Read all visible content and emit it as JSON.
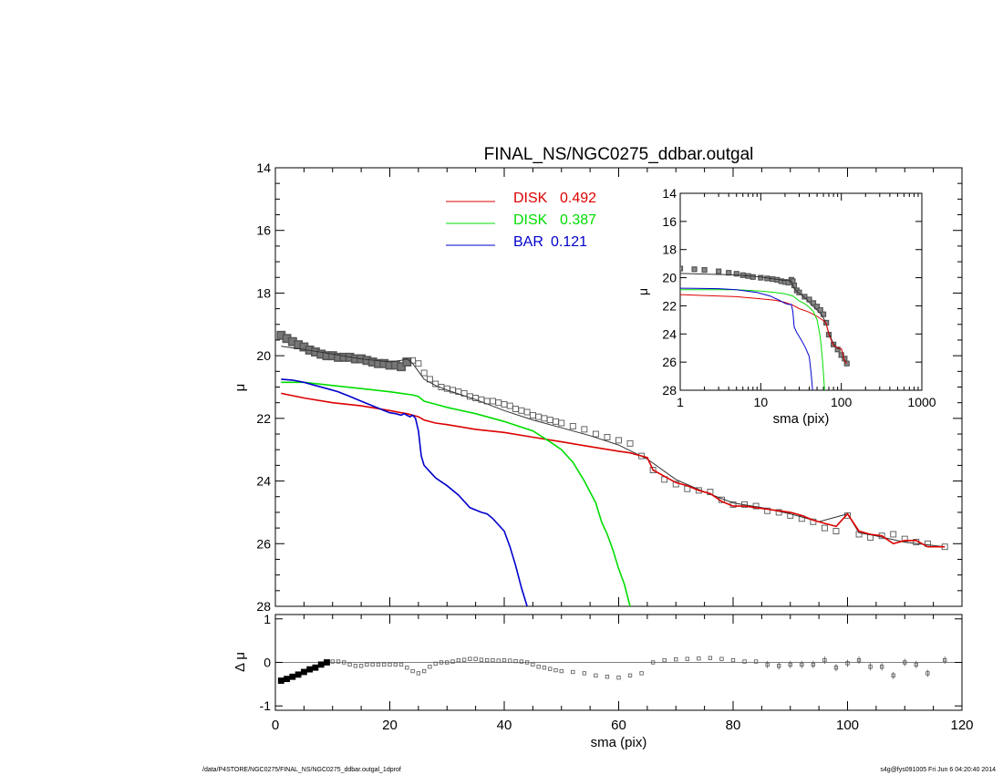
{
  "chart_data": [
    {
      "id": "main",
      "type": "line",
      "title": "FINAL_NS/NGC0275_ddbar.outgal",
      "xlabel": "",
      "ylabel": "μ",
      "xlim": [
        0,
        120
      ],
      "ylim": [
        28,
        14
      ],
      "y_inverted": true,
      "yticks": [
        14,
        16,
        18,
        20,
        22,
        24,
        26,
        28
      ],
      "legend": {
        "position": "top-center",
        "entries": [
          {
            "label": "DISK",
            "value": "0.492",
            "color": "#dd0000"
          },
          {
            "label": "DISK",
            "value": "0.387",
            "color": "#00dd00"
          },
          {
            "label": "BAR",
            "value": "0.121",
            "color": "#0000cc"
          }
        ]
      },
      "series": [
        {
          "kind": "observed",
          "color": "#555555",
          "x": [
            1,
            2,
            3,
            4,
            5,
            6,
            7,
            8,
            9,
            10,
            11,
            12,
            13,
            14,
            15,
            16,
            17,
            18,
            19,
            20,
            21,
            22,
            23,
            24,
            25,
            26,
            27,
            28,
            29,
            30,
            31,
            32,
            33,
            34,
            35,
            36,
            37,
            38,
            39,
            40,
            41,
            42,
            43,
            44,
            45,
            46,
            47,
            48,
            49,
            50,
            52,
            54,
            56,
            58,
            60,
            62,
            64,
            66,
            68,
            70,
            72,
            74,
            76,
            78,
            80,
            82,
            84,
            86,
            88,
            90,
            92,
            94,
            96,
            98,
            100,
            102,
            104,
            106,
            108,
            110,
            112,
            114,
            117
          ],
          "y": [
            19.35,
            19.45,
            19.55,
            19.65,
            19.72,
            19.82,
            19.88,
            19.95,
            20.0,
            20.0,
            20.05,
            20.05,
            20.05,
            20.1,
            20.1,
            20.15,
            20.2,
            20.25,
            20.25,
            20.3,
            20.3,
            20.35,
            20.2,
            20.15,
            20.25,
            20.55,
            20.75,
            20.9,
            21.0,
            21.05,
            21.1,
            21.15,
            21.2,
            21.3,
            21.35,
            21.4,
            21.45,
            21.45,
            21.5,
            21.55,
            21.6,
            21.7,
            21.75,
            21.8,
            21.9,
            21.95,
            22.0,
            22.05,
            22.1,
            22.15,
            22.25,
            22.35,
            22.5,
            22.6,
            22.7,
            22.8,
            23.2,
            23.65,
            23.95,
            24.1,
            24.25,
            24.3,
            24.35,
            24.6,
            24.75,
            24.75,
            24.8,
            24.95,
            25.0,
            25.1,
            25.2,
            25.3,
            25.5,
            25.6,
            25.1,
            25.7,
            25.8,
            25.75,
            25.7,
            25.85,
            25.95,
            26.0,
            26.1
          ]
        },
        {
          "kind": "model-total",
          "color": "#333333",
          "x": [
            1,
            5,
            10,
            15,
            20,
            22,
            23,
            24,
            25,
            26,
            28,
            30,
            35,
            40,
            45,
            50,
            55,
            60,
            65,
            70,
            75,
            80,
            85,
            90,
            95,
            100,
            102,
            105,
            110,
            117
          ],
          "y": [
            19.7,
            19.8,
            19.95,
            20.1,
            20.2,
            20.15,
            20.1,
            20.25,
            20.5,
            20.75,
            20.95,
            21.1,
            21.4,
            21.75,
            22.05,
            22.3,
            22.55,
            22.85,
            23.3,
            23.95,
            24.35,
            24.7,
            24.85,
            25.05,
            25.3,
            25.05,
            25.65,
            25.75,
            25.95,
            26.1
          ]
        },
        {
          "name": "DISK 0.492",
          "color": "#dd0000",
          "x": [
            1,
            5,
            10,
            15,
            20,
            22,
            23,
            24,
            25,
            26,
            28,
            30,
            35,
            40,
            45,
            50,
            55,
            60,
            62,
            64,
            65,
            66,
            68,
            70,
            72,
            74,
            76,
            78,
            80,
            82,
            84,
            86,
            88,
            90,
            92,
            94,
            96,
            98,
            100,
            102,
            104,
            106,
            108,
            110,
            112,
            114,
            117
          ],
          "y": [
            21.2,
            21.35,
            21.5,
            21.6,
            21.75,
            21.82,
            21.85,
            21.9,
            21.95,
            22.05,
            22.15,
            22.2,
            22.35,
            22.45,
            22.6,
            22.75,
            22.9,
            23.05,
            23.1,
            23.2,
            23.25,
            23.65,
            23.85,
            24.05,
            24.15,
            24.3,
            24.4,
            24.65,
            24.8,
            24.8,
            24.85,
            24.9,
            24.95,
            25.0,
            25.1,
            25.25,
            25.35,
            25.45,
            25.05,
            25.6,
            25.7,
            25.75,
            26.0,
            25.9,
            25.9,
            26.1,
            26.1
          ]
        },
        {
          "name": "DISK 0.387",
          "color": "#00dd00",
          "x": [
            1,
            5,
            10,
            15,
            20,
            22,
            24,
            25,
            26,
            28,
            30,
            35,
            40,
            45,
            48,
            50,
            52,
            54,
            56,
            57,
            58,
            59,
            60,
            61,
            62
          ],
          "y": [
            20.85,
            20.85,
            20.95,
            21.05,
            21.15,
            21.2,
            21.25,
            21.3,
            21.45,
            21.55,
            21.65,
            21.85,
            22.1,
            22.4,
            22.75,
            23.0,
            23.4,
            24.0,
            24.7,
            25.3,
            25.7,
            26.2,
            26.8,
            27.3,
            28.0
          ]
        },
        {
          "name": "BAR 0.121",
          "color": "#0000cc",
          "x": [
            1,
            3,
            5,
            7,
            9,
            11,
            13,
            15,
            17,
            19,
            20,
            21,
            22,
            22.5,
            23,
            23.5,
            24,
            24.5,
            25,
            25.5,
            26,
            27,
            28,
            30,
            32,
            34,
            36,
            37,
            38,
            40,
            41,
            42,
            43,
            44
          ],
          "y": [
            20.75,
            20.78,
            20.85,
            20.95,
            21.05,
            21.15,
            21.3,
            21.45,
            21.6,
            21.75,
            21.82,
            21.85,
            21.9,
            21.85,
            21.9,
            21.95,
            21.9,
            22.0,
            22.4,
            23.2,
            23.5,
            23.7,
            23.9,
            24.15,
            24.45,
            24.85,
            25.0,
            25.05,
            25.2,
            25.6,
            26.1,
            26.7,
            27.4,
            28.0
          ]
        }
      ]
    },
    {
      "id": "residual",
      "type": "scatter",
      "xlabel": "sma (pix)",
      "ylabel": "Δ μ",
      "xlim": [
        0,
        120
      ],
      "ylim": [
        -1.1,
        1.1
      ],
      "xticks": [
        0,
        20,
        40,
        60,
        80,
        100,
        120
      ],
      "yticks": [
        1,
        0,
        -1
      ],
      "series": [
        {
          "kind": "residual",
          "color": "#555555",
          "x": [
            1,
            2,
            3,
            4,
            5,
            6,
            7,
            8,
            9,
            10,
            11,
            12,
            13,
            14,
            15,
            16,
            17,
            18,
            19,
            20,
            21,
            22,
            23,
            24,
            25,
            26,
            27,
            28,
            29,
            30,
            31,
            32,
            33,
            34,
            35,
            36,
            37,
            38,
            39,
            40,
            41,
            42,
            43,
            44,
            45,
            46,
            47,
            48,
            49,
            50,
            52,
            54,
            56,
            58,
            60,
            62,
            64,
            66,
            68,
            70,
            72,
            74,
            76,
            78,
            80,
            82,
            84,
            86,
            88,
            90,
            92,
            94,
            96,
            98,
            100,
            102,
            104,
            106,
            108,
            110,
            112,
            114,
            117
          ],
          "y": [
            -0.42,
            -0.38,
            -0.33,
            -0.28,
            -0.22,
            -0.16,
            -0.12,
            -0.05,
            0.0,
            0.02,
            0.02,
            0.0,
            -0.05,
            -0.08,
            -0.08,
            -0.05,
            -0.05,
            -0.05,
            -0.05,
            -0.05,
            -0.05,
            -0.05,
            -0.12,
            -0.2,
            -0.25,
            -0.2,
            -0.1,
            -0.03,
            0.0,
            0.0,
            0.02,
            0.05,
            0.06,
            0.08,
            0.08,
            0.06,
            0.05,
            0.05,
            0.04,
            0.05,
            0.04,
            0.03,
            0.02,
            0.0,
            -0.05,
            -0.1,
            -0.12,
            -0.15,
            -0.18,
            -0.2,
            -0.22,
            -0.25,
            -0.3,
            -0.33,
            -0.35,
            -0.3,
            -0.25,
            0.0,
            0.05,
            0.07,
            0.08,
            0.09,
            0.1,
            0.08,
            0.05,
            0.02,
            0.02,
            -0.05,
            -0.08,
            -0.05,
            -0.05,
            -0.05,
            0.05,
            -0.12,
            -0.02,
            0.05,
            -0.1,
            -0.1,
            -0.3,
            0.0,
            -0.05,
            -0.25,
            0.05
          ]
        }
      ]
    },
    {
      "id": "inset",
      "type": "line",
      "xlabel": "sma (pix)",
      "ylabel": "μ",
      "xscale": "log",
      "xlim": [
        1,
        1000
      ],
      "ylim": [
        28,
        14
      ],
      "y_inverted": true,
      "xticks": [
        1,
        10,
        100,
        1000
      ],
      "yticks": [
        14,
        16,
        18,
        20,
        22,
        24,
        26,
        28
      ],
      "series": [
        {
          "kind": "observed",
          "color": "#555555",
          "x": [
            1,
            1.5,
            2,
            3,
            4,
            5,
            6,
            7,
            8,
            10,
            12,
            14,
            16,
            18,
            20,
            22,
            24,
            25,
            26,
            28,
            30,
            35,
            40,
            45,
            50,
            55,
            60,
            65,
            70,
            80,
            90,
            100,
            110,
            117
          ],
          "y": [
            19.35,
            19.4,
            19.45,
            19.55,
            19.65,
            19.72,
            19.82,
            19.88,
            19.95,
            20.0,
            20.05,
            20.1,
            20.15,
            20.25,
            20.3,
            20.35,
            20.15,
            20.25,
            20.55,
            20.9,
            21.05,
            21.35,
            21.55,
            21.8,
            22.05,
            22.3,
            22.6,
            23.2,
            24.05,
            24.75,
            25.1,
            25.5,
            25.75,
            26.1
          ]
        },
        {
          "kind": "model-total",
          "color": "#333333",
          "x": [
            1,
            5,
            10,
            15,
            20,
            22,
            24,
            25,
            26,
            28,
            30,
            35,
            40,
            45,
            50,
            55,
            60,
            65,
            70,
            80,
            90,
            100,
            110,
            117
          ],
          "y": [
            19.7,
            19.8,
            19.95,
            20.1,
            20.2,
            20.15,
            20.25,
            20.5,
            20.75,
            20.95,
            21.1,
            21.4,
            21.75,
            22.05,
            22.3,
            22.55,
            22.85,
            23.3,
            23.95,
            24.7,
            25.05,
            25.05,
            25.95,
            26.1
          ]
        },
        {
          "name": "DISK 0.492",
          "color": "#dd0000",
          "x": [
            1,
            5,
            10,
            15,
            20,
            25,
            30,
            40,
            50,
            60,
            65,
            70,
            80,
            90,
            100,
            110,
            117
          ],
          "y": [
            21.2,
            21.35,
            21.5,
            21.6,
            21.75,
            21.95,
            22.2,
            22.45,
            22.75,
            23.05,
            23.25,
            24.05,
            24.8,
            25.0,
            25.05,
            25.9,
            26.1
          ]
        },
        {
          "name": "DISK 0.387",
          "color": "#00dd00",
          "x": [
            1,
            5,
            10,
            15,
            20,
            25,
            30,
            35,
            40,
            45,
            50,
            54,
            56,
            58,
            60,
            62
          ],
          "y": [
            20.85,
            20.85,
            20.95,
            21.05,
            21.15,
            21.3,
            21.65,
            21.85,
            22.1,
            22.4,
            23.0,
            24.0,
            24.7,
            25.7,
            26.8,
            28.0
          ]
        },
        {
          "name": "BAR 0.121",
          "color": "#0000cc",
          "x": [
            1,
            3,
            5,
            9,
            13,
            17,
            20,
            22,
            24,
            25,
            26,
            28,
            32,
            36,
            40,
            42,
            44
          ],
          "y": [
            20.75,
            20.78,
            20.85,
            21.05,
            21.3,
            21.6,
            21.82,
            21.9,
            21.9,
            22.4,
            23.5,
            23.9,
            24.45,
            25.0,
            25.6,
            26.7,
            28.0
          ]
        }
      ]
    }
  ],
  "footer": {
    "left": "/data/P4STORE/NGC0275/FINAL_NS/NGC0275_ddbar.outgal_1dprof",
    "right": "s4g@fys091005  Fri Jun  6 04:20:40 2014"
  }
}
